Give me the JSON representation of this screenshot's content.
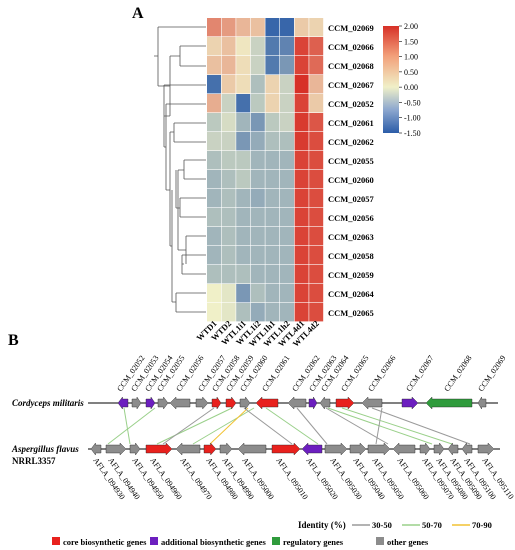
{
  "panel_a": {
    "label": "A",
    "rows": [
      "CCM_02069",
      "CCM_02066",
      "CCM_02068",
      "CCM_02067",
      "CCM_02052",
      "CCM_02061",
      "CCM_02062",
      "CCM_02055",
      "CCM_02060",
      "CCM_02057",
      "CCM_02056",
      "CCM_02063",
      "CCM_02058",
      "CCM_02059",
      "CCM_02064",
      "CCM_02065"
    ],
    "columns": [
      "WTD1",
      "WTD2",
      "WTL1i1",
      "WTL1i2",
      "WTL1h1",
      "WTL1h2",
      "WTL4d1",
      "WTL4d2"
    ],
    "values": [
      [
        1.1,
        0.9,
        0.6,
        0.5,
        -1.4,
        -1.4,
        0.4,
        0.3
      ],
      [
        0.3,
        0.5,
        0.1,
        -0.3,
        -1.2,
        -1.1,
        1.8,
        1.5
      ],
      [
        0.5,
        0.6,
        0.2,
        -0.3,
        -1.2,
        -0.9,
        1.8,
        1.4
      ],
      [
        -1.3,
        0.4,
        0.2,
        -0.5,
        0.3,
        -0.3,
        2.0,
        0.6
      ],
      [
        0.7,
        -0.3,
        -1.3,
        -0.4,
        0.3,
        -0.3,
        1.8,
        0.4
      ],
      [
        -0.4,
        -0.2,
        -0.6,
        -0.9,
        -0.4,
        -0.3,
        1.9,
        1.6
      ],
      [
        -0.3,
        -0.3,
        -0.9,
        -0.7,
        -0.5,
        -0.5,
        1.9,
        1.7
      ],
      [
        -0.5,
        -0.4,
        -0.4,
        -0.6,
        -0.6,
        -0.6,
        1.8,
        1.7
      ],
      [
        -0.6,
        -0.5,
        -0.4,
        -0.6,
        -0.6,
        -0.6,
        1.8,
        1.7
      ],
      [
        -0.6,
        -0.5,
        -0.6,
        -0.7,
        -0.6,
        -0.6,
        1.8,
        1.7
      ],
      [
        -0.5,
        -0.5,
        -0.6,
        -0.6,
        -0.6,
        -0.6,
        1.8,
        1.7
      ],
      [
        -0.6,
        -0.5,
        -0.6,
        -0.6,
        -0.6,
        -0.6,
        1.8,
        1.7
      ],
      [
        -0.6,
        -0.5,
        -0.6,
        -0.6,
        -0.6,
        -0.6,
        1.8,
        1.7
      ],
      [
        -0.5,
        -0.5,
        -0.5,
        -0.6,
        -0.6,
        -0.6,
        1.8,
        1.7
      ],
      [
        0.0,
        -0.1,
        -0.9,
        -0.5,
        -0.6,
        -0.6,
        1.8,
        1.7
      ],
      [
        0.0,
        -0.1,
        -0.5,
        -0.7,
        -0.6,
        -0.6,
        1.8,
        1.7
      ]
    ],
    "colorbar_ticks": [
      "2.00",
      "1.50",
      "1.00",
      "0.50",
      "0.00",
      "-0.50",
      "-1.00",
      "-1.50"
    ],
    "colors": {
      "high": "#d73027",
      "mid": "#f0f0c8",
      "low": "#2b5ca8"
    }
  },
  "panel_b": {
    "label": "B",
    "cm_species": "Cordyceps militaris",
    "af_species": "Aspergillus flavus",
    "af_strain": "NRRL3357",
    "cm_labels": [
      "CCM_02052",
      "CCM_02053",
      "CCM_02054",
      "CCM_02055",
      "CCM_02056",
      "CCM_02057",
      "CCM_02058",
      "CCM_02059",
      "CCM_02060",
      "CCM_02061",
      "CCM_02062",
      "CCM_02063",
      "CCM_02064",
      "CCM_02065",
      "CCM_02066",
      "CCM_02067",
      "CCM_02068",
      "CCM_02069"
    ],
    "af_labels": [
      "AFLA_094930",
      "AFLA_094940",
      "AFLA_094950",
      "AFLA_094960",
      "AFLA_094970",
      "AFLA_094980",
      "AFLA_094990",
      "AFLA_095000",
      "AFLA_095010",
      "AFLA_095020",
      "AFLA_095030",
      "AFLA_095040",
      "AFLA_095050",
      "AFLA_095060",
      "AFLA_095070",
      "AFLA_095080",
      "AFLA_095090",
      "AFLA_095100",
      "AFLA_095110"
    ],
    "cm_genes": [
      "additional",
      "other",
      "additional",
      "other",
      "other",
      "other",
      "core",
      "core",
      "other",
      "core",
      "other",
      "additional",
      "other",
      "core",
      "other",
      "additional",
      "regulatory",
      "other"
    ],
    "af_genes": [
      "other",
      "other",
      "other",
      "core",
      "other",
      "core",
      "other",
      "other",
      "core",
      "additional",
      "other",
      "other",
      "other",
      "other",
      "other",
      "other",
      "other",
      "other",
      "other"
    ],
    "legend": [
      {
        "key": "core",
        "label": "core biosynthetic genes",
        "color": "#e8211d"
      },
      {
        "key": "additional",
        "label": "additional biosynthetic genes",
        "color": "#6c1fbf"
      },
      {
        "key": "regulatory",
        "label": "regulatory genes",
        "color": "#2f9b3c"
      },
      {
        "key": "other",
        "label": "other genes",
        "color": "#8c8c8c"
      }
    ],
    "identity": {
      "title": "Identity (%)",
      "ranges": [
        {
          "label": "30-50",
          "color": "#9a9a9a"
        },
        {
          "label": "50-70",
          "color": "#9ad08a"
        },
        {
          "label": "70-90",
          "color": "#f2c233"
        }
      ]
    }
  }
}
